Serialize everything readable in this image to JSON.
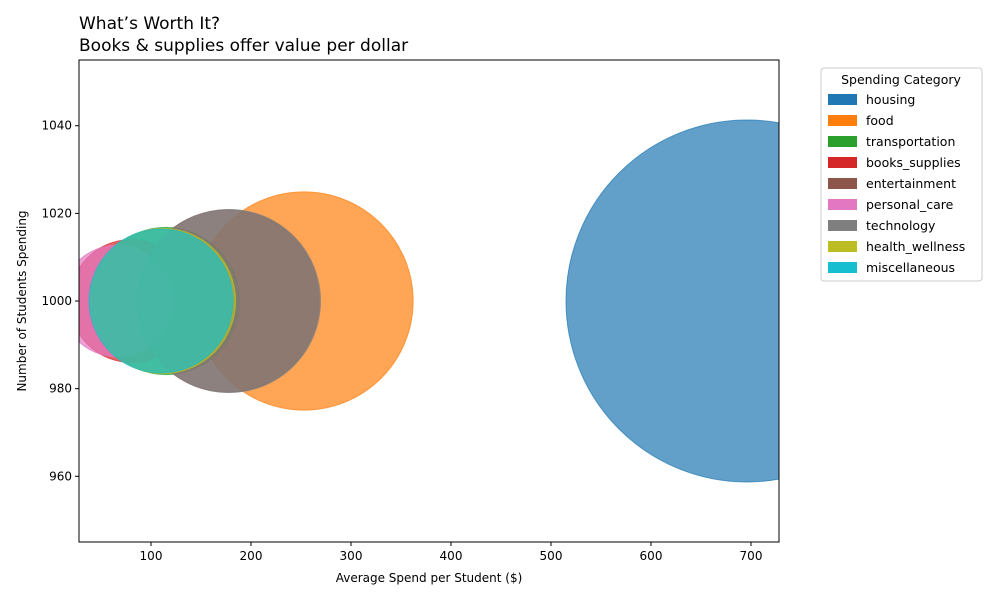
{
  "chart_data": {
    "type": "scatter",
    "title": "What’s Worth It?",
    "subtitle": "Books & supplies offer value per dollar",
    "xlabel": "Average Spend per Student ($)",
    "ylabel": "Number of Students Spending",
    "xlim": [
      28,
      728
    ],
    "ylim": [
      945,
      1055
    ],
    "x_ticks": [
      100,
      200,
      300,
      400,
      500,
      600,
      700
    ],
    "y_ticks": [
      960,
      980,
      1000,
      1020,
      1040
    ],
    "grid": false,
    "legend": {
      "title": "Spending Category",
      "placement": "outside-right-top"
    },
    "series": [
      {
        "name": "housing",
        "color": "#1f77b4",
        "x": 696,
        "y": 1000,
        "size": 696
      },
      {
        "name": "food",
        "color": "#ff7f0e",
        "x": 253,
        "y": 1000,
        "size": 253
      },
      {
        "name": "transportation",
        "color": "#2ca02c",
        "x": 115,
        "y": 1000,
        "size": 115
      },
      {
        "name": "books_supplies",
        "color": "#d62728",
        "x": 80,
        "y": 1000,
        "size": 80
      },
      {
        "name": "entertainment",
        "color": "#8c564b",
        "x": 177,
        "y": 1000,
        "size": 177
      },
      {
        "name": "personal_care",
        "color": "#e377c2",
        "x": 66,
        "y": 1000,
        "size": 66
      },
      {
        "name": "technology",
        "color": "#7f7f7f",
        "x": 178,
        "y": 1000,
        "size": 178
      },
      {
        "name": "health_wellness",
        "color": "#bcbd22",
        "x": 112,
        "y": 1000,
        "size": 112
      },
      {
        "name": "miscellaneous",
        "color": "#17becf",
        "x": 110,
        "y": 1000,
        "size": 110
      }
    ]
  }
}
